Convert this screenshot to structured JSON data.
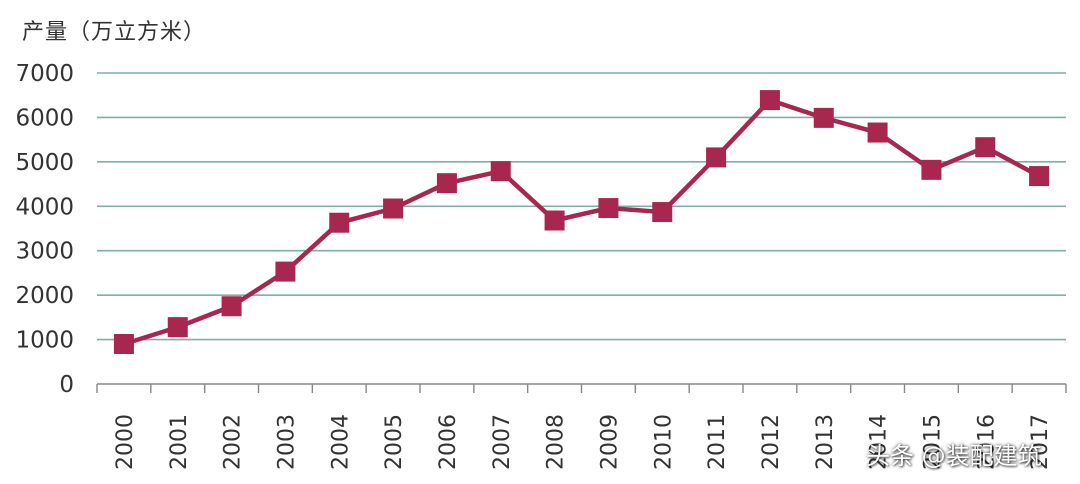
{
  "chart_data": {
    "type": "line",
    "title": "",
    "ylabel": "产量（万立方米）",
    "xlabel": "",
    "categories": [
      "2000",
      "2001",
      "2002",
      "2003",
      "2004",
      "2005",
      "2006",
      "2007",
      "2008",
      "2009",
      "2010",
      "2011",
      "2012",
      "2013",
      "2014",
      "2015",
      "2016",
      "2017"
    ],
    "series": [
      {
        "values": [
          900,
          1280,
          1750,
          2530,
          3630,
          3950,
          4520,
          4790,
          3680,
          3960,
          3870,
          5100,
          6390,
          5990,
          5660,
          4820,
          5330,
          4680
        ]
      }
    ],
    "ylim": [
      0,
      7000
    ],
    "yticks": [
      0,
      1000,
      2000,
      3000,
      4000,
      5000,
      6000,
      7000
    ],
    "grid": true,
    "colors": {
      "line": "#A8274F",
      "marker": "#A8274F",
      "grid": "#7FAFA8",
      "axis": "#888888",
      "text": "#333333"
    }
  },
  "watermark": "头条 @装配建筑"
}
